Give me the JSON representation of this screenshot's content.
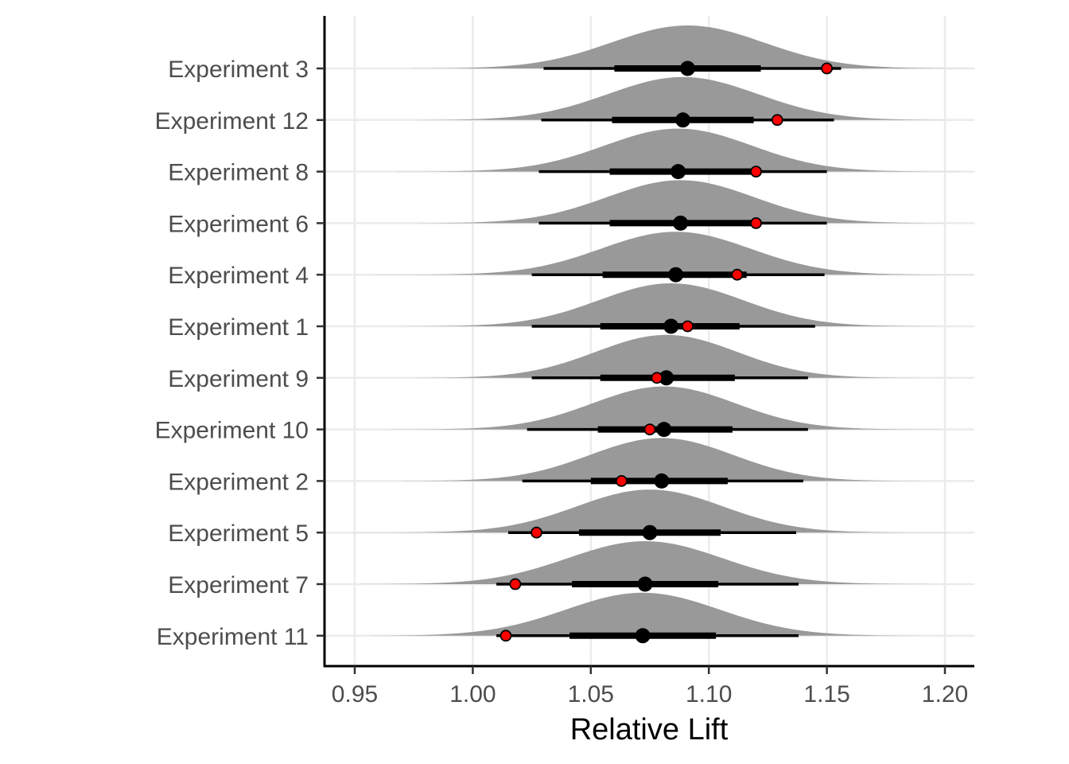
{
  "chart_data": {
    "type": "forest-halfeye",
    "xlabel": "Relative Lift",
    "ylabel": "",
    "xlim": [
      0.938,
      1.212
    ],
    "xticks": [
      0.95,
      1.0,
      1.05,
      1.1,
      1.15,
      1.2
    ],
    "xtick_labels": [
      "0.95",
      "1.00",
      "1.05",
      "1.10",
      "1.15",
      "1.20"
    ],
    "grid": true,
    "colors": {
      "density_fill": "#999999",
      "interval": "#000000",
      "median_point": "#000000",
      "observed_point": "#ff0000",
      "grid": "#ebebeb"
    },
    "series": [
      {
        "label": "Experiment 3",
        "median": 1.091,
        "ci66": [
          1.06,
          1.122
        ],
        "ci95": [
          1.03,
          1.156
        ],
        "observed": 1.15
      },
      {
        "label": "Experiment 12",
        "median": 1.089,
        "ci66": [
          1.059,
          1.119
        ],
        "ci95": [
          1.029,
          1.153
        ],
        "observed": 1.129
      },
      {
        "label": "Experiment 8",
        "median": 1.087,
        "ci66": [
          1.058,
          1.118
        ],
        "ci95": [
          1.028,
          1.15
        ],
        "observed": 1.12
      },
      {
        "label": "Experiment 6",
        "median": 1.088,
        "ci66": [
          1.058,
          1.118
        ],
        "ci95": [
          1.028,
          1.15
        ],
        "observed": 1.12
      },
      {
        "label": "Experiment 4",
        "median": 1.086,
        "ci66": [
          1.055,
          1.116
        ],
        "ci95": [
          1.025,
          1.149
        ],
        "observed": 1.112
      },
      {
        "label": "Experiment 1",
        "median": 1.084,
        "ci66": [
          1.054,
          1.113
        ],
        "ci95": [
          1.025,
          1.145
        ],
        "observed": 1.091
      },
      {
        "label": "Experiment 9",
        "median": 1.082,
        "ci66": [
          1.054,
          1.111
        ],
        "ci95": [
          1.025,
          1.142
        ],
        "observed": 1.078
      },
      {
        "label": "Experiment 10",
        "median": 1.081,
        "ci66": [
          1.053,
          1.11
        ],
        "ci95": [
          1.023,
          1.142
        ],
        "observed": 1.075
      },
      {
        "label": "Experiment 2",
        "median": 1.08,
        "ci66": [
          1.05,
          1.108
        ],
        "ci95": [
          1.021,
          1.14
        ],
        "observed": 1.063
      },
      {
        "label": "Experiment 5",
        "median": 1.075,
        "ci66": [
          1.045,
          1.105
        ],
        "ci95": [
          1.015,
          1.137
        ],
        "observed": 1.027
      },
      {
        "label": "Experiment 7",
        "median": 1.073,
        "ci66": [
          1.042,
          1.104
        ],
        "ci95": [
          1.01,
          1.138
        ],
        "observed": 1.018
      },
      {
        "label": "Experiment 11",
        "median": 1.072,
        "ci66": [
          1.041,
          1.103
        ],
        "ci95": [
          1.01,
          1.138
        ],
        "observed": 1.014
      }
    ]
  }
}
